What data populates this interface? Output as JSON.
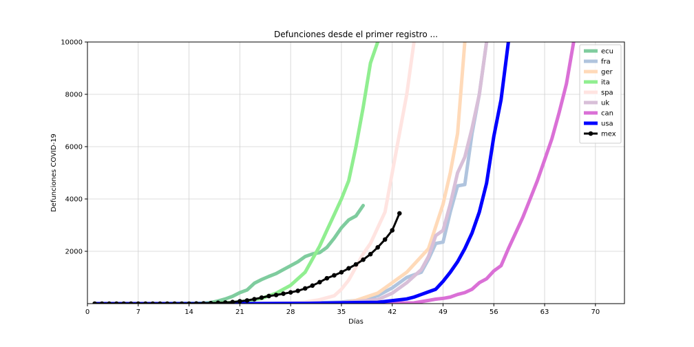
{
  "chart_data": {
    "type": "line",
    "title": "Defunciones desde el primer registro ...",
    "xlabel": "Días",
    "ylabel": "Defunciones COVID-19",
    "xlim": [
      0,
      74
    ],
    "ylim": [
      0,
      10000
    ],
    "xticks": [
      0,
      7,
      14,
      21,
      28,
      35,
      42,
      49,
      56,
      63,
      70
    ],
    "yticks": [
      2000,
      4000,
      6000,
      8000,
      10000
    ],
    "grid": true,
    "legend_position": "top-right",
    "series": [
      {
        "name": "ecu",
        "color": "#7fcc9e",
        "width": 5,
        "marker": false,
        "x": [
          1,
          5,
          10,
          15,
          16,
          17,
          18,
          19,
          20,
          21,
          22,
          23,
          24,
          25,
          26,
          27,
          28,
          29,
          30,
          31,
          32,
          33,
          34,
          35,
          36,
          37,
          38
        ],
        "y": [
          0,
          0,
          0,
          5,
          15,
          40,
          100,
          180,
          280,
          420,
          520,
          780,
          920,
          1040,
          1150,
          1300,
          1450,
          1600,
          1800,
          1900,
          1950,
          2150,
          2500,
          2900,
          3200,
          3350,
          3750
        ]
      },
      {
        "name": "fra",
        "color": "#b0c4de",
        "width": 5,
        "marker": false,
        "x": [
          1,
          10,
          20,
          30,
          35,
          38,
          40,
          42,
          44,
          46,
          47,
          48,
          49,
          50,
          51,
          52,
          53,
          54,
          55
        ],
        "y": [
          0,
          0,
          0,
          20,
          60,
          150,
          300,
          600,
          1000,
          1200,
          1700,
          2300,
          2350,
          3500,
          4500,
          4550,
          6500,
          8000,
          10000
        ]
      },
      {
        "name": "ger",
        "color": "#ffdab9",
        "width": 5,
        "marker": false,
        "x": [
          1,
          10,
          20,
          30,
          35,
          37,
          40,
          42,
          44,
          46,
          47,
          49,
          50,
          51,
          52
        ],
        "y": [
          0,
          0,
          0,
          10,
          30,
          120,
          400,
          800,
          1200,
          1800,
          2100,
          3800,
          5000,
          6500,
          10000
        ]
      },
      {
        "name": "ita",
        "color": "#90ee90",
        "width": 5,
        "marker": false,
        "x": [
          1,
          10,
          15,
          20,
          22,
          24,
          26,
          28,
          30,
          31,
          32,
          33,
          34,
          35,
          36,
          37,
          38,
          39,
          40
        ],
        "y": [
          0,
          0,
          5,
          40,
          100,
          200,
          400,
          700,
          1200,
          1700,
          2200,
          2800,
          3400,
          4000,
          4700,
          6000,
          7500,
          9200,
          10000
        ]
      },
      {
        "name": "spa",
        "color": "#ffe4e1",
        "width": 5,
        "marker": false,
        "x": [
          1,
          10,
          20,
          25,
          28,
          30,
          32,
          34,
          35,
          36,
          37,
          38,
          39,
          40,
          41,
          42,
          43,
          44,
          45
        ],
        "y": [
          0,
          0,
          0,
          10,
          30,
          60,
          150,
          300,
          550,
          900,
          1400,
          1900,
          2300,
          2900,
          3500,
          5000,
          6500,
          8000,
          10000
        ]
      },
      {
        "name": "uk",
        "color": "#d8bfd8",
        "width": 5,
        "marker": false,
        "x": [
          1,
          10,
          20,
          30,
          35,
          40,
          42,
          44,
          46,
          47,
          48,
          49,
          50,
          51,
          52,
          53,
          54,
          55
        ],
        "y": [
          0,
          0,
          0,
          10,
          40,
          150,
          400,
          800,
          1300,
          1800,
          2600,
          2800,
          3800,
          5000,
          5600,
          6700,
          8000,
          10000
        ]
      },
      {
        "name": "can",
        "color": "#da70d6",
        "width": 5,
        "marker": false,
        "x": [
          1,
          10,
          20,
          30,
          40,
          45,
          47,
          48,
          49,
          50,
          51,
          52,
          53,
          54,
          55,
          56,
          57,
          58,
          59,
          60,
          61,
          62,
          63,
          64,
          65,
          66,
          67
        ],
        "y": [
          0,
          0,
          0,
          0,
          5,
          30,
          120,
          170,
          200,
          250,
          350,
          420,
          550,
          800,
          950,
          1250,
          1450,
          2100,
          2700,
          3300,
          4000,
          4700,
          5500,
          6300,
          7300,
          8400,
          10000
        ]
      },
      {
        "name": "usa",
        "color": "#0000ff",
        "width": 5,
        "marker": false,
        "x": [
          1,
          10,
          20,
          30,
          40,
          44,
          45,
          46,
          47,
          48,
          49,
          50,
          51,
          52,
          53,
          54,
          55,
          56,
          57,
          58
        ],
        "y": [
          0,
          0,
          0,
          10,
          50,
          180,
          250,
          350,
          450,
          550,
          850,
          1200,
          1600,
          2100,
          2700,
          3500,
          4600,
          6400,
          7800,
          10000
        ]
      },
      {
        "name": "mex",
        "color": "#000000",
        "width": 3,
        "marker": true,
        "x": [
          1,
          2,
          3,
          4,
          5,
          6,
          7,
          8,
          9,
          10,
          11,
          12,
          13,
          14,
          15,
          16,
          17,
          18,
          19,
          20,
          21,
          22,
          23,
          24,
          25,
          26,
          27,
          28,
          29,
          30,
          31,
          32,
          33,
          34,
          35,
          36,
          37,
          38,
          39,
          40,
          41,
          42,
          43
        ],
        "y": [
          0,
          0,
          0,
          0,
          0,
          0,
          0,
          0,
          0,
          0,
          0,
          0,
          0,
          0,
          5,
          10,
          20,
          30,
          40,
          60,
          90,
          120,
          170,
          230,
          290,
          330,
          380,
          430,
          490,
          580,
          690,
          820,
          970,
          1080,
          1200,
          1350,
          1500,
          1680,
          1890,
          2150,
          2450,
          2800,
          3450
        ]
      }
    ]
  }
}
